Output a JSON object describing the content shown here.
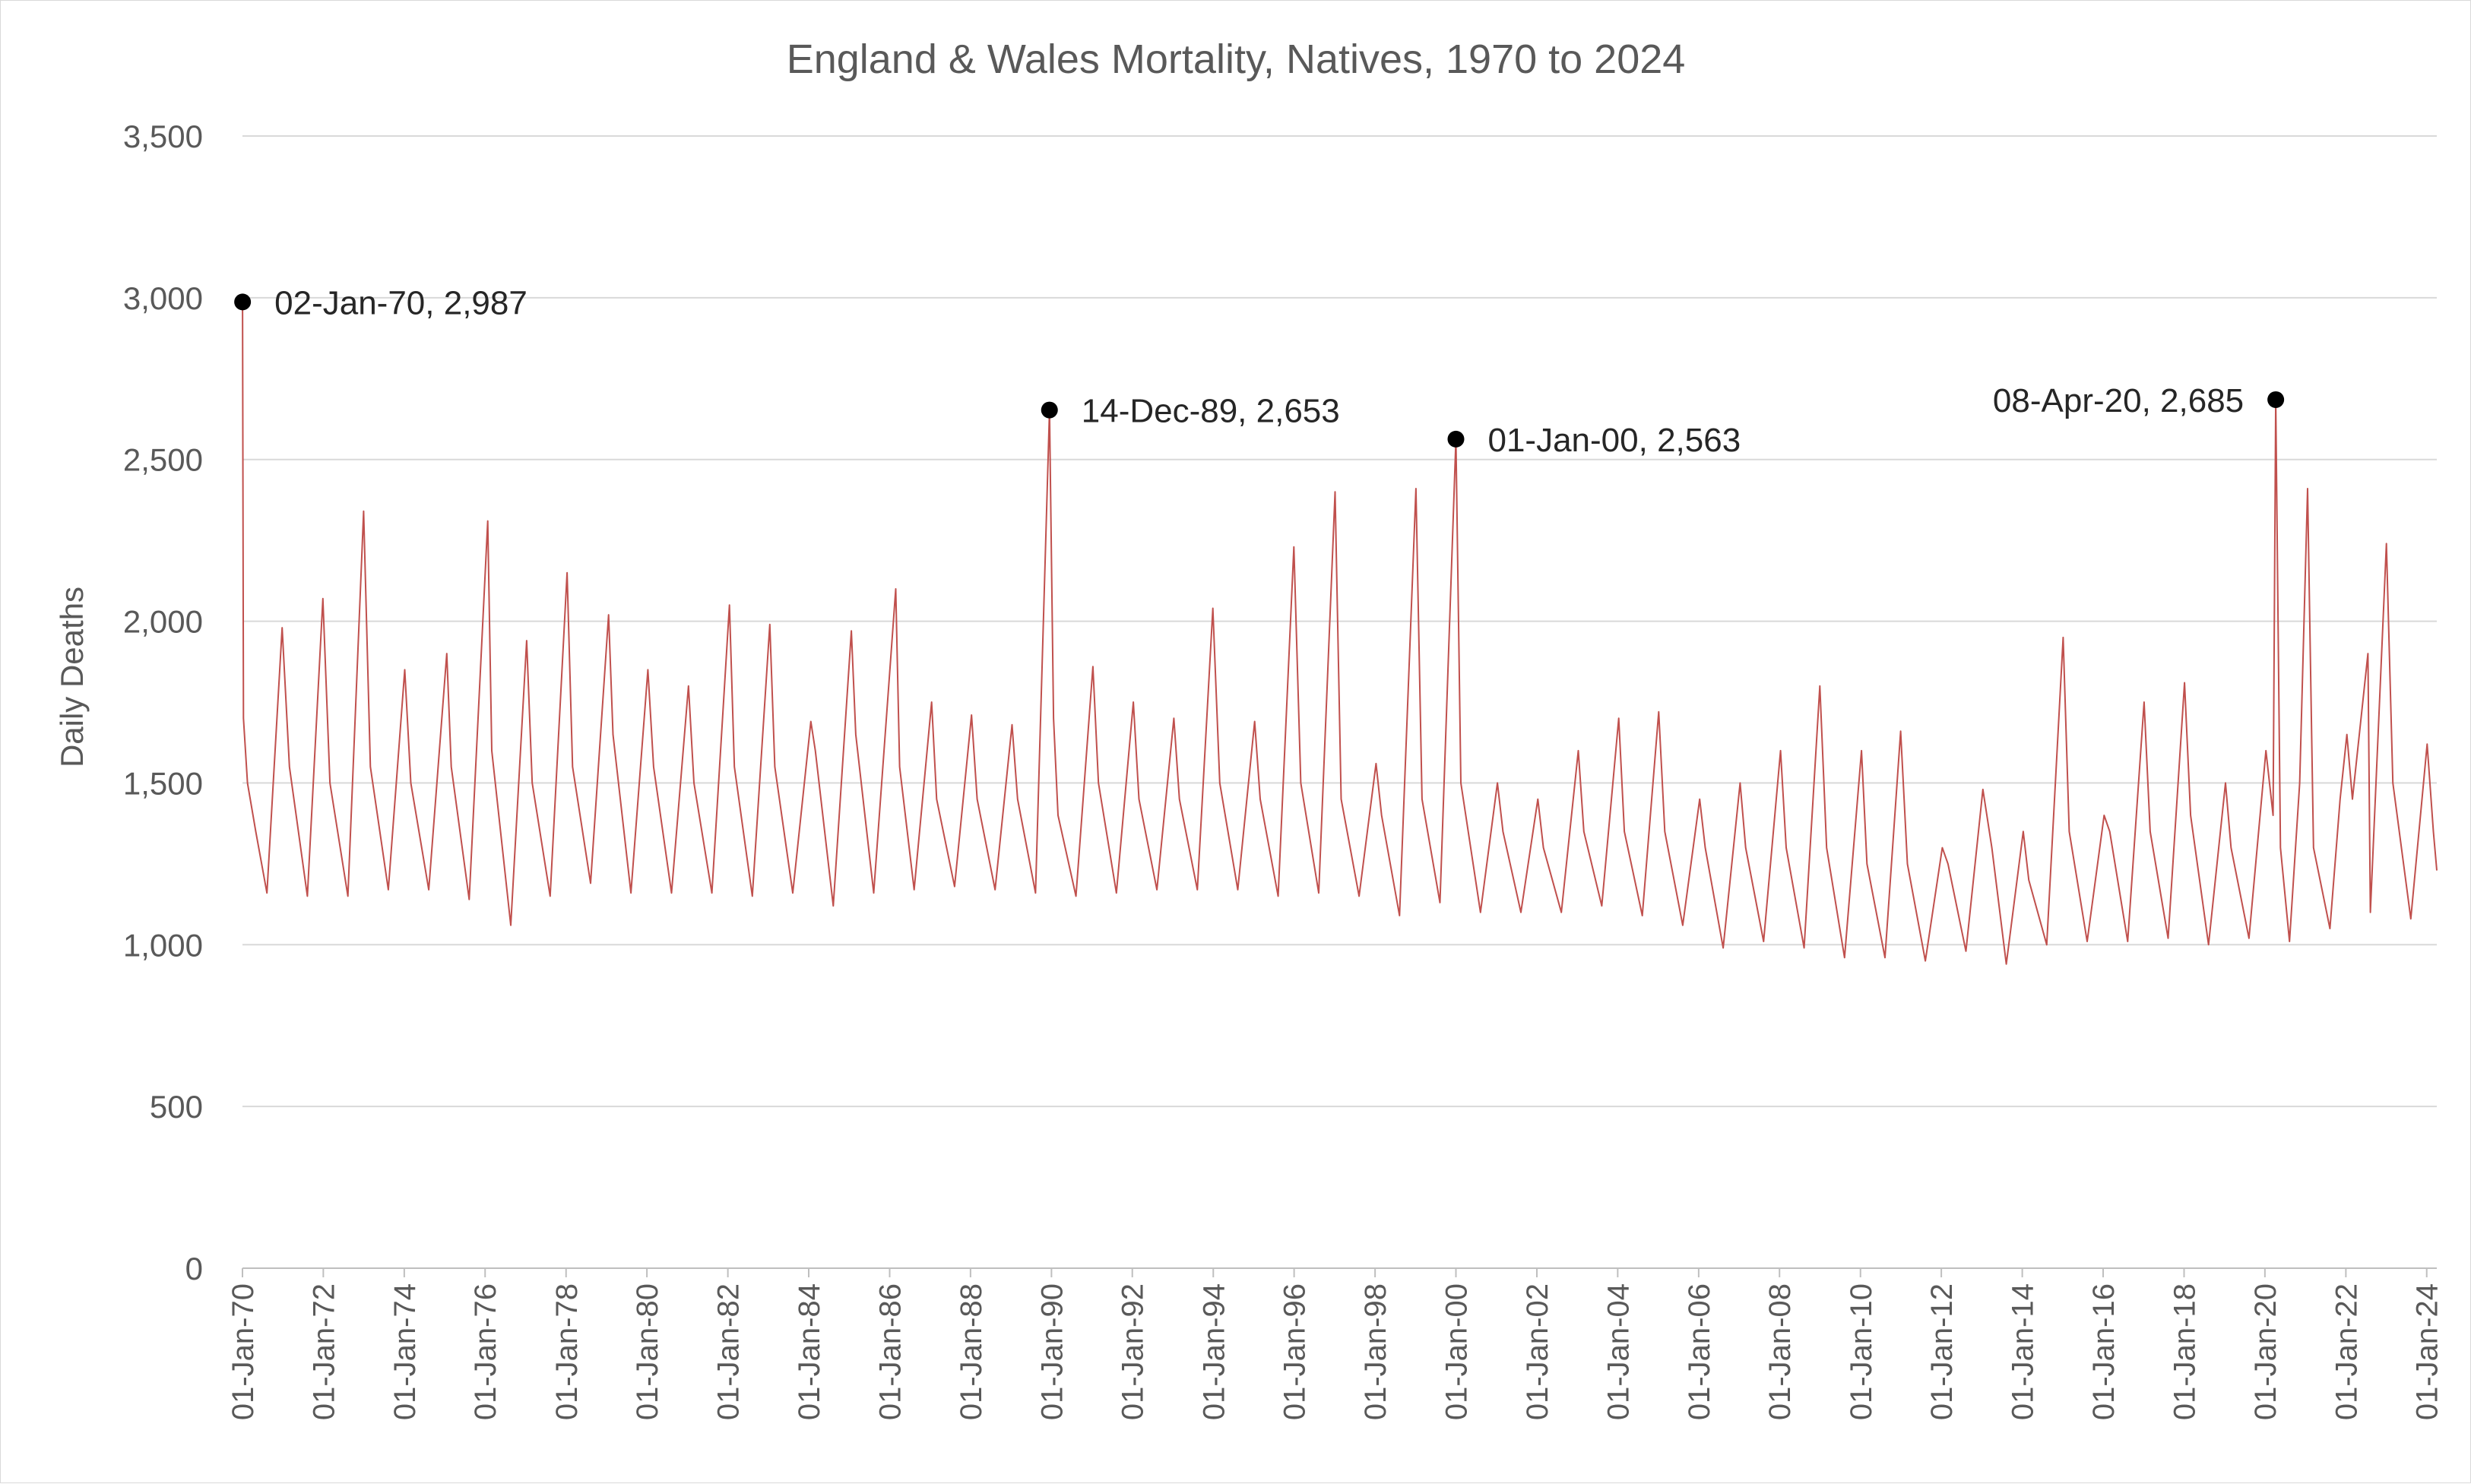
{
  "chart_data": {
    "type": "line",
    "title": "England & Wales Mortality, Natives, 1970 to 2024",
    "xlabel": "",
    "ylabel": "Daily Deaths",
    "x_range": [
      "1970-01-01",
      "2024-04-01"
    ],
    "ylim": [
      0,
      3500
    ],
    "y_ticks": [
      {
        "value": 0,
        "label": "0"
      },
      {
        "value": 500,
        "label": "500"
      },
      {
        "value": 1000,
        "label": "1,000"
      },
      {
        "value": 1500,
        "label": "1,500"
      },
      {
        "value": 2000,
        "label": "2,000"
      },
      {
        "value": 2500,
        "label": "2,500"
      },
      {
        "value": 3000,
        "label": "3,000"
      },
      {
        "value": 3500,
        "label": "3,500"
      }
    ],
    "x_ticks": [
      {
        "date": "1970-01-01",
        "label": "01-Jan-70"
      },
      {
        "date": "1972-01-01",
        "label": "01-Jan-72"
      },
      {
        "date": "1974-01-01",
        "label": "01-Jan-74"
      },
      {
        "date": "1976-01-01",
        "label": "01-Jan-76"
      },
      {
        "date": "1978-01-01",
        "label": "01-Jan-78"
      },
      {
        "date": "1980-01-01",
        "label": "01-Jan-80"
      },
      {
        "date": "1982-01-01",
        "label": "01-Jan-82"
      },
      {
        "date": "1984-01-01",
        "label": "01-Jan-84"
      },
      {
        "date": "1986-01-01",
        "label": "01-Jan-86"
      },
      {
        "date": "1988-01-01",
        "label": "01-Jan-88"
      },
      {
        "date": "1990-01-01",
        "label": "01-Jan-90"
      },
      {
        "date": "1992-01-01",
        "label": "01-Jan-92"
      },
      {
        "date": "1994-01-01",
        "label": "01-Jan-94"
      },
      {
        "date": "1996-01-01",
        "label": "01-Jan-96"
      },
      {
        "date": "1998-01-01",
        "label": "01-Jan-98"
      },
      {
        "date": "2000-01-01",
        "label": "01-Jan-00"
      },
      {
        "date": "2002-01-01",
        "label": "01-Jan-02"
      },
      {
        "date": "2004-01-01",
        "label": "01-Jan-04"
      },
      {
        "date": "2006-01-01",
        "label": "01-Jan-06"
      },
      {
        "date": "2008-01-01",
        "label": "01-Jan-08"
      },
      {
        "date": "2010-01-01",
        "label": "01-Jan-10"
      },
      {
        "date": "2012-01-01",
        "label": "01-Jan-12"
      },
      {
        "date": "2014-01-01",
        "label": "01-Jan-14"
      },
      {
        "date": "2016-01-01",
        "label": "01-Jan-16"
      },
      {
        "date": "2018-01-01",
        "label": "01-Jan-18"
      },
      {
        "date": "2020-01-01",
        "label": "01-Jan-20"
      },
      {
        "date": "2022-01-01",
        "label": "01-Jan-22"
      },
      {
        "date": "2024-01-01",
        "label": "01-Jan-24"
      }
    ],
    "grid": true,
    "legend": "none",
    "series": [
      {
        "color": "#c0504d",
        "points": [
          {
            "x": "1970-01-02",
            "y": 2987
          },
          {
            "x": "1970-01-10",
            "y": 1700
          },
          {
            "x": "1970-02-15",
            "y": 1500
          },
          {
            "x": "1970-05-01",
            "y": 1350
          },
          {
            "x": "1970-08-10",
            "y": 1160
          },
          {
            "x": "1970-12-25",
            "y": 1980
          },
          {
            "x": "1971-03-01",
            "y": 1550
          },
          {
            "x": "1971-08-10",
            "y": 1150
          },
          {
            "x": "1971-12-28",
            "y": 2070
          },
          {
            "x": "1972-03-01",
            "y": 1500
          },
          {
            "x": "1972-08-10",
            "y": 1150
          },
          {
            "x": "1972-12-30",
            "y": 2340
          },
          {
            "x": "1973-03-01",
            "y": 1550
          },
          {
            "x": "1973-08-10",
            "y": 1170
          },
          {
            "x": "1974-01-05",
            "y": 1850
          },
          {
            "x": "1974-03-01",
            "y": 1500
          },
          {
            "x": "1974-08-10",
            "y": 1170
          },
          {
            "x": "1975-01-20",
            "y": 1900
          },
          {
            "x": "1975-03-01",
            "y": 1550
          },
          {
            "x": "1975-08-10",
            "y": 1140
          },
          {
            "x": "1976-01-25",
            "y": 2310
          },
          {
            "x": "1976-03-01",
            "y": 1600
          },
          {
            "x": "1976-08-20",
            "y": 1060
          },
          {
            "x": "1977-01-10",
            "y": 1940
          },
          {
            "x": "1977-03-01",
            "y": 1500
          },
          {
            "x": "1977-08-10",
            "y": 1150
          },
          {
            "x": "1978-01-10",
            "y": 2150
          },
          {
            "x": "1978-03-01",
            "y": 1550
          },
          {
            "x": "1978-08-10",
            "y": 1190
          },
          {
            "x": "1979-01-20",
            "y": 2020
          },
          {
            "x": "1979-03-01",
            "y": 1650
          },
          {
            "x": "1979-08-10",
            "y": 1160
          },
          {
            "x": "1980-01-10",
            "y": 1850
          },
          {
            "x": "1980-03-01",
            "y": 1550
          },
          {
            "x": "1980-08-10",
            "y": 1160
          },
          {
            "x": "1981-01-10",
            "y": 1800
          },
          {
            "x": "1981-03-01",
            "y": 1500
          },
          {
            "x": "1981-08-10",
            "y": 1160
          },
          {
            "x": "1982-01-15",
            "y": 2050
          },
          {
            "x": "1982-03-01",
            "y": 1550
          },
          {
            "x": "1982-08-10",
            "y": 1150
          },
          {
            "x": "1983-01-15",
            "y": 1990
          },
          {
            "x": "1983-03-01",
            "y": 1550
          },
          {
            "x": "1983-08-10",
            "y": 1160
          },
          {
            "x": "1984-01-20",
            "y": 1690
          },
          {
            "x": "1984-03-01",
            "y": 1600
          },
          {
            "x": "1984-08-10",
            "y": 1120
          },
          {
            "x": "1985-01-20",
            "y": 1970
          },
          {
            "x": "1985-03-01",
            "y": 1650
          },
          {
            "x": "1985-08-10",
            "y": 1160
          },
          {
            "x": "1986-02-25",
            "y": 2100
          },
          {
            "x": "1986-04-01",
            "y": 1550
          },
          {
            "x": "1986-08-10",
            "y": 1170
          },
          {
            "x": "1987-01-15",
            "y": 1750
          },
          {
            "x": "1987-03-01",
            "y": 1450
          },
          {
            "x": "1987-08-10",
            "y": 1180
          },
          {
            "x": "1988-01-10",
            "y": 1710
          },
          {
            "x": "1988-03-01",
            "y": 1450
          },
          {
            "x": "1988-08-10",
            "y": 1170
          },
          {
            "x": "1989-01-10",
            "y": 1680
          },
          {
            "x": "1989-03-01",
            "y": 1450
          },
          {
            "x": "1989-08-10",
            "y": 1160
          },
          {
            "x": "1989-12-14",
            "y": 2653
          },
          {
            "x": "1990-01-20",
            "y": 1700
          },
          {
            "x": "1990-03-01",
            "y": 1400
          },
          {
            "x": "1990-08-10",
            "y": 1150
          },
          {
            "x": "1991-01-10",
            "y": 1860
          },
          {
            "x": "1991-03-01",
            "y": 1500
          },
          {
            "x": "1991-08-10",
            "y": 1160
          },
          {
            "x": "1992-01-10",
            "y": 1750
          },
          {
            "x": "1992-03-01",
            "y": 1450
          },
          {
            "x": "1992-08-10",
            "y": 1170
          },
          {
            "x": "1993-01-10",
            "y": 1700
          },
          {
            "x": "1993-03-01",
            "y": 1450
          },
          {
            "x": "1993-08-10",
            "y": 1170
          },
          {
            "x": "1993-12-28",
            "y": 2040
          },
          {
            "x": "1994-03-01",
            "y": 1500
          },
          {
            "x": "1994-08-10",
            "y": 1170
          },
          {
            "x": "1995-01-10",
            "y": 1690
          },
          {
            "x": "1995-03-01",
            "y": 1450
          },
          {
            "x": "1995-08-10",
            "y": 1150
          },
          {
            "x": "1995-12-30",
            "y": 2230
          },
          {
            "x": "1996-03-01",
            "y": 1500
          },
          {
            "x": "1996-08-10",
            "y": 1160
          },
          {
            "x": "1997-01-05",
            "y": 2400
          },
          {
            "x": "1997-03-01",
            "y": 1450
          },
          {
            "x": "1997-08-10",
            "y": 1150
          },
          {
            "x": "1998-01-10",
            "y": 1560
          },
          {
            "x": "1998-03-01",
            "y": 1400
          },
          {
            "x": "1998-08-10",
            "y": 1090
          },
          {
            "x": "1999-01-05",
            "y": 2410
          },
          {
            "x": "1999-03-01",
            "y": 1450
          },
          {
            "x": "1999-08-10",
            "y": 1130
          },
          {
            "x": "2000-01-01",
            "y": 2563
          },
          {
            "x": "2000-02-15",
            "y": 1500
          },
          {
            "x": "2000-08-10",
            "y": 1100
          },
          {
            "x": "2001-01-10",
            "y": 1500
          },
          {
            "x": "2001-03-01",
            "y": 1350
          },
          {
            "x": "2001-08-10",
            "y": 1100
          },
          {
            "x": "2002-01-10",
            "y": 1450
          },
          {
            "x": "2002-03-01",
            "y": 1300
          },
          {
            "x": "2002-08-10",
            "y": 1100
          },
          {
            "x": "2003-01-10",
            "y": 1600
          },
          {
            "x": "2003-03-01",
            "y": 1350
          },
          {
            "x": "2003-08-10",
            "y": 1120
          },
          {
            "x": "2004-01-10",
            "y": 1700
          },
          {
            "x": "2004-03-01",
            "y": 1350
          },
          {
            "x": "2004-08-10",
            "y": 1090
          },
          {
            "x": "2005-01-05",
            "y": 1720
          },
          {
            "x": "2005-03-01",
            "y": 1350
          },
          {
            "x": "2005-08-10",
            "y": 1060
          },
          {
            "x": "2006-01-10",
            "y": 1450
          },
          {
            "x": "2006-03-01",
            "y": 1300
          },
          {
            "x": "2006-08-10",
            "y": 990
          },
          {
            "x": "2007-01-10",
            "y": 1500
          },
          {
            "x": "2007-03-01",
            "y": 1300
          },
          {
            "x": "2007-08-10",
            "y": 1010
          },
          {
            "x": "2008-01-10",
            "y": 1600
          },
          {
            "x": "2008-03-01",
            "y": 1300
          },
          {
            "x": "2008-08-10",
            "y": 990
          },
          {
            "x": "2008-12-30",
            "y": 1800
          },
          {
            "x": "2009-03-01",
            "y": 1300
          },
          {
            "x": "2009-08-10",
            "y": 960
          },
          {
            "x": "2010-01-10",
            "y": 1600
          },
          {
            "x": "2010-03-01",
            "y": 1250
          },
          {
            "x": "2010-08-10",
            "y": 960
          },
          {
            "x": "2010-12-30",
            "y": 1660
          },
          {
            "x": "2011-03-01",
            "y": 1250
          },
          {
            "x": "2011-08-10",
            "y": 950
          },
          {
            "x": "2012-01-10",
            "y": 1300
          },
          {
            "x": "2012-03-01",
            "y": 1250
          },
          {
            "x": "2012-08-10",
            "y": 980
          },
          {
            "x": "2013-01-10",
            "y": 1480
          },
          {
            "x": "2013-04-01",
            "y": 1300
          },
          {
            "x": "2013-08-10",
            "y": 940
          },
          {
            "x": "2014-01-10",
            "y": 1350
          },
          {
            "x": "2014-03-01",
            "y": 1200
          },
          {
            "x": "2014-08-10",
            "y": 1000
          },
          {
            "x": "2015-01-05",
            "y": 1950
          },
          {
            "x": "2015-03-01",
            "y": 1350
          },
          {
            "x": "2015-08-10",
            "y": 1010
          },
          {
            "x": "2016-01-10",
            "y": 1400
          },
          {
            "x": "2016-03-01",
            "y": 1350
          },
          {
            "x": "2016-08-10",
            "y": 1010
          },
          {
            "x": "2017-01-05",
            "y": 1750
          },
          {
            "x": "2017-03-01",
            "y": 1350
          },
          {
            "x": "2017-08-10",
            "y": 1020
          },
          {
            "x": "2018-01-05",
            "y": 1810
          },
          {
            "x": "2018-03-01",
            "y": 1400
          },
          {
            "x": "2018-08-10",
            "y": 1000
          },
          {
            "x": "2019-01-10",
            "y": 1500
          },
          {
            "x": "2019-03-01",
            "y": 1300
          },
          {
            "x": "2019-08-10",
            "y": 1020
          },
          {
            "x": "2020-01-10",
            "y": 1600
          },
          {
            "x": "2020-03-15",
            "y": 1400
          },
          {
            "x": "2020-04-08",
            "y": 2685
          },
          {
            "x": "2020-05-20",
            "y": 1300
          },
          {
            "x": "2020-08-10",
            "y": 1010
          },
          {
            "x": "2020-11-10",
            "y": 1500
          },
          {
            "x": "2021-01-20",
            "y": 2410
          },
          {
            "x": "2021-03-15",
            "y": 1300
          },
          {
            "x": "2021-08-10",
            "y": 1050
          },
          {
            "x": "2021-11-10",
            "y": 1450
          },
          {
            "x": "2022-01-10",
            "y": 1650
          },
          {
            "x": "2022-03-01",
            "y": 1450
          },
          {
            "x": "2022-07-19",
            "y": 1900
          },
          {
            "x": "2022-08-10",
            "y": 1100
          },
          {
            "x": "2023-01-02",
            "y": 2240
          },
          {
            "x": "2023-03-01",
            "y": 1500
          },
          {
            "x": "2023-08-10",
            "y": 1080
          },
          {
            "x": "2024-01-05",
            "y": 1620
          },
          {
            "x": "2024-03-01",
            "y": 1350
          },
          {
            "x": "2024-04-01",
            "y": 1230
          }
        ]
      }
    ],
    "annotations": [
      {
        "x": "1970-01-02",
        "y": 2987,
        "label": "02-Jan-70, 2,987",
        "side": "right"
      },
      {
        "x": "1989-12-14",
        "y": 2653,
        "label": "14-Dec-89, 2,653",
        "side": "right"
      },
      {
        "x": "2000-01-01",
        "y": 2563,
        "label": "01-Jan-00, 2,563",
        "side": "right"
      },
      {
        "x": "2020-04-08",
        "y": 2685,
        "label": "08-Apr-20, 2,685",
        "side": "left"
      }
    ]
  }
}
